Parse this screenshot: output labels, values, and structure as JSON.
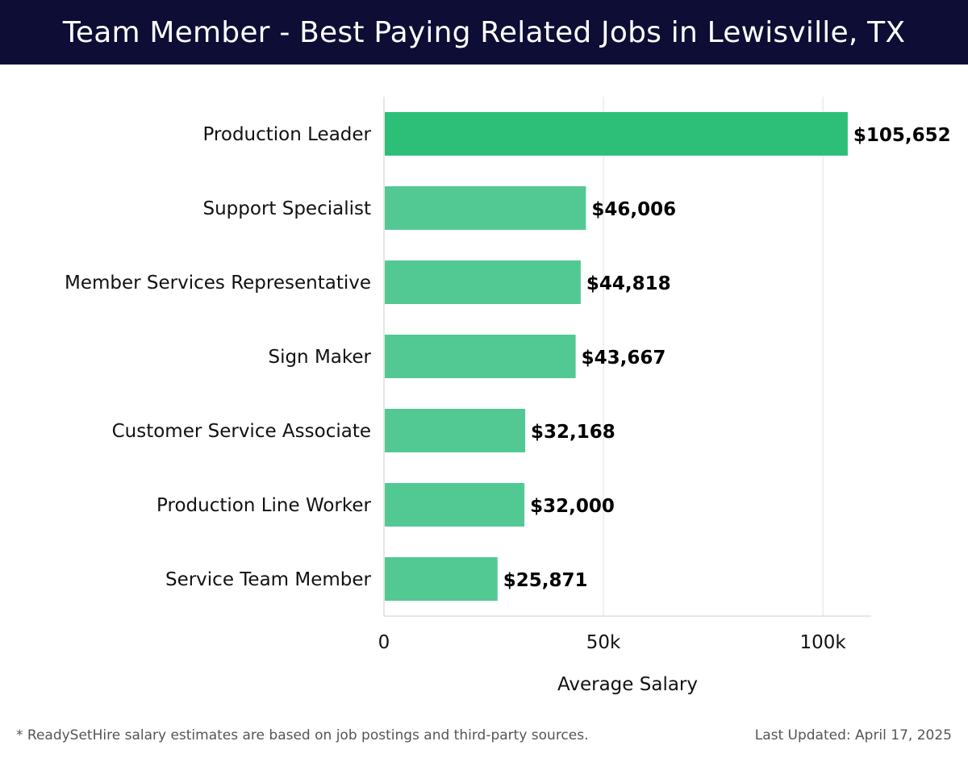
{
  "header": {
    "title": "Team Member - Best Paying Related Jobs in Lewisville, TX"
  },
  "footer": {
    "note": "* ReadySetHire salary estimates are based on job postings and third-party sources.",
    "updated": "Last Updated: April 17, 2025"
  },
  "chart_data": {
    "type": "bar",
    "orientation": "horizontal",
    "categories": [
      "Production Leader",
      "Support Specialist",
      "Member Services Representative",
      "Sign Maker",
      "Customer Service Associate",
      "Production Line Worker",
      "Service Team Member"
    ],
    "values": [
      105652,
      46006,
      44818,
      43667,
      32168,
      32000,
      25871
    ],
    "value_labels": [
      "$105,652",
      "$46,006",
      "$44,818",
      "$43,667",
      "$32,168",
      "$32,000",
      "$25,871"
    ],
    "xlabel": "Average Salary",
    "xlim": [
      0,
      111000
    ],
    "xticks": [
      0,
      50000,
      100000
    ],
    "xtick_labels": [
      "0",
      "50k",
      "100k"
    ],
    "grid": true,
    "colors": {
      "highlight": "#2dbf78",
      "bar": "#52c993",
      "grid": "#e0e0e0",
      "axis": "#cccccc"
    }
  }
}
